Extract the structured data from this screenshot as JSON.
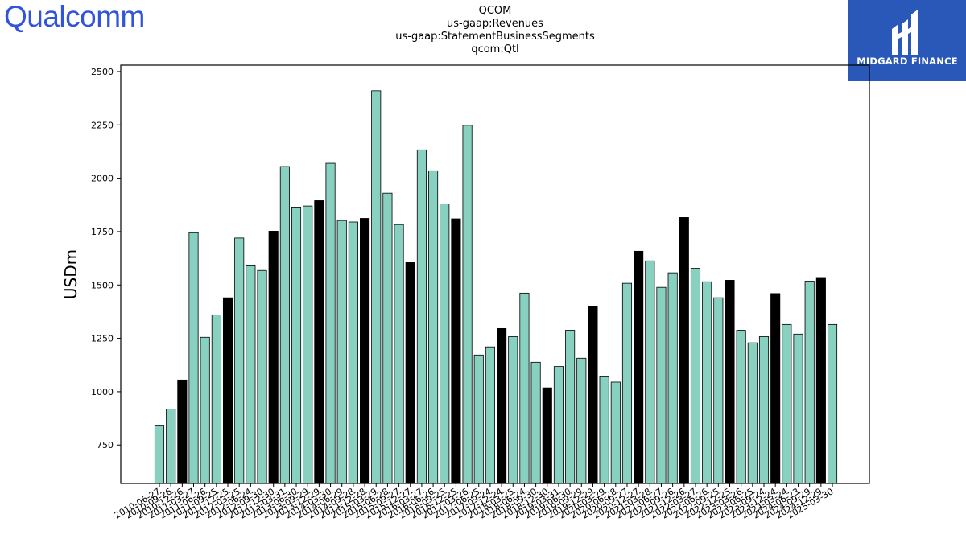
{
  "brand": {
    "logo_text": "Qualcomm"
  },
  "badge": {
    "name": "MIDGARD FINANCE"
  },
  "colors": {
    "bar_default": "#88d0c0",
    "bar_highlight": "#000000",
    "brand": "#3253dc",
    "badge_bg": "#2a58b8"
  },
  "chart_data": {
    "type": "bar",
    "title_lines": [
      "QCOM",
      "us-gaap:Revenues",
      "us-gaap:StatementBusinessSegments",
      "qcom:Qtl"
    ],
    "xlabel": "",
    "ylabel": "USDm",
    "ylim": [
      570,
      2530
    ],
    "yticks": [
      750,
      1000,
      1250,
      1500,
      1750,
      2000,
      2250,
      2500
    ],
    "grid": false,
    "categories": [
      "2010-06-27",
      "2010-09-26",
      "2010-12-26",
      "2011-03-27",
      "2011-06-26",
      "2011-09-25",
      "2011-12-25",
      "2012-03-25",
      "2012-06-24",
      "2012-09-30",
      "2012-12-30",
      "2013-03-31",
      "2013-06-30",
      "2013-09-29",
      "2013-12-29",
      "2014-03-30",
      "2014-06-29",
      "2014-09-28",
      "2014-12-28",
      "2015-03-29",
      "2015-06-28",
      "2015-09-27",
      "2015-12-27",
      "2016-03-27",
      "2016-06-26",
      "2016-09-25",
      "2016-12-25",
      "2017-03-26",
      "2017-06-25",
      "2017-09-24",
      "2017-12-24",
      "2018-03-25",
      "2018-06-24",
      "2018-09-30",
      "2018-12-30",
      "2019-03-31",
      "2019-06-30",
      "2019-09-29",
      "2019-12-29",
      "2020-03-29",
      "2020-06-28",
      "2020-09-27",
      "2020-12-27",
      "2021-03-28",
      "2021-06-27",
      "2021-09-26",
      "2021-12-26",
      "2022-03-27",
      "2022-06-26",
      "2022-09-25",
      "2022-12-25",
      "2023-03-26",
      "2023-06-25",
      "2023-09-24",
      "2023-12-24",
      "2024-03-24",
      "2024-06-23",
      "2024-09-29",
      "2024-12-29",
      "2025-03-30"
    ],
    "values": [
      843,
      919,
      1055,
      1745,
      1255,
      1360,
      1440,
      1720,
      1590,
      1568,
      1752,
      2055,
      1865,
      1870,
      1895,
      2070,
      1802,
      1795,
      1812,
      2410,
      1930,
      1783,
      1605,
      2133,
      2035,
      1880,
      1810,
      2248,
      1172,
      1210,
      1296,
      1258,
      1462,
      1138,
      1018,
      1118,
      1288,
      1157,
      1400,
      1070,
      1045,
      1508,
      1658,
      1613,
      1489,
      1557,
      1816,
      1578,
      1515,
      1440,
      1522,
      1288,
      1229,
      1258,
      1460,
      1315,
      1270,
      1518,
      1535,
      1315
    ],
    "highlight_indices": [
      2,
      6,
      10,
      14,
      18,
      22,
      26,
      30,
      34,
      38,
      42,
      46,
      50,
      54,
      58
    ]
  }
}
